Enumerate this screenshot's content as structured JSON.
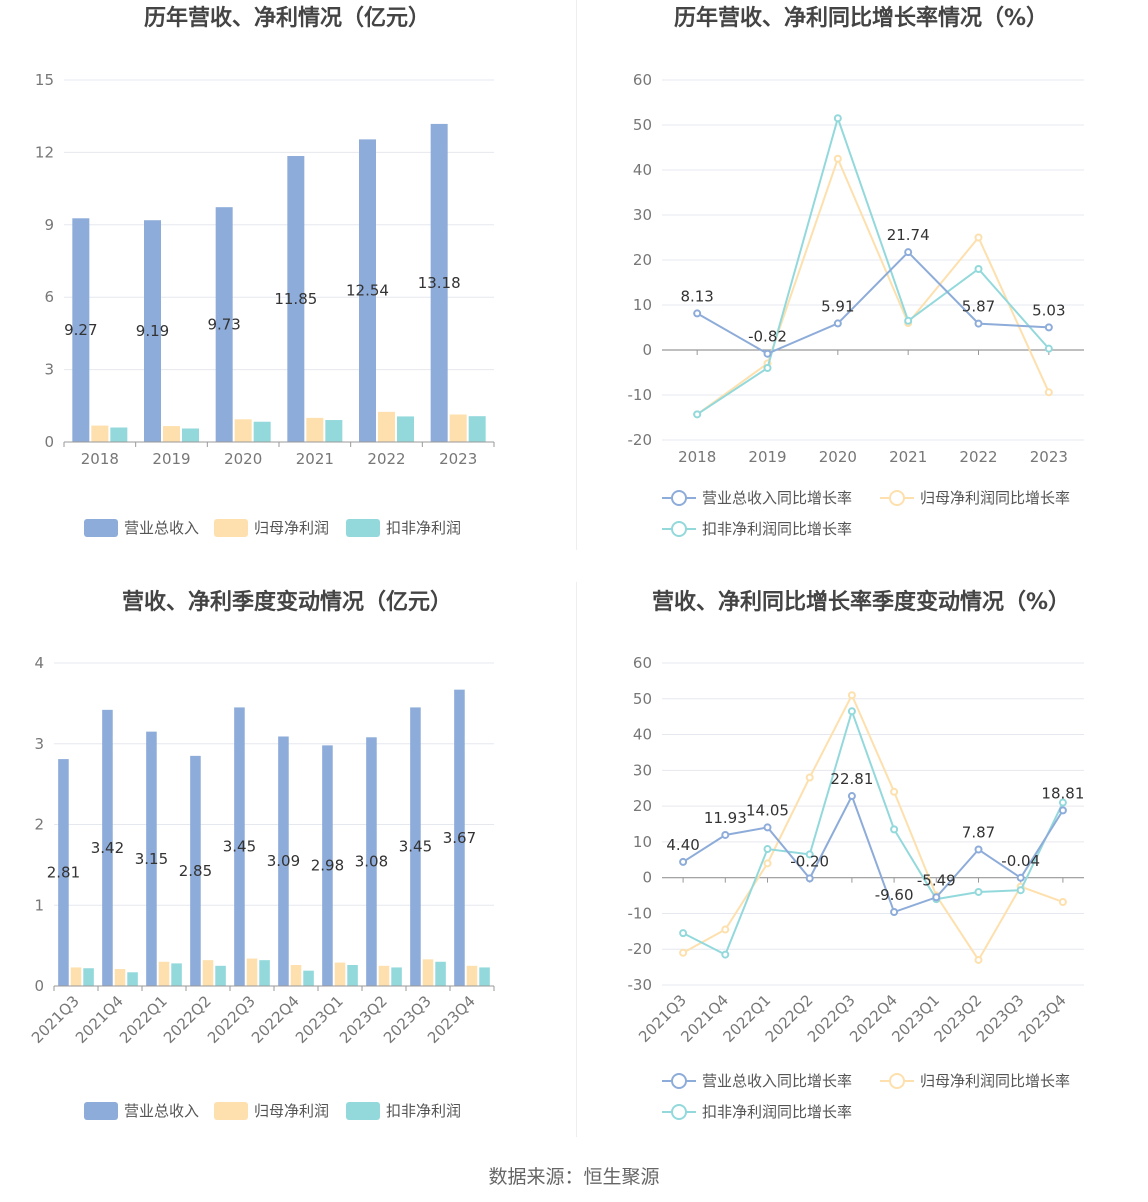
{
  "source": "数据来源：恒生聚源",
  "legend_bar": [
    "营业总收入",
    "归母净利润",
    "扣非净利润"
  ],
  "legend_line": [
    "营业总收入同比增长率",
    "归母净利润同比增长率",
    "扣非净利润同比增长率"
  ],
  "colors": {
    "blue": "#8eacd9",
    "orange": "#fde0ad",
    "cyan": "#93d9dc",
    "axis": "#999999",
    "grid": "#e6e8ef"
  },
  "chart_data": [
    {
      "type": "bar",
      "title": "历年营收、净利情况（亿元）",
      "categories": [
        "2018",
        "2019",
        "2020",
        "2021",
        "2022",
        "2023"
      ],
      "ylim": [
        0,
        15
      ],
      "yticks": [
        0,
        3,
        6,
        9,
        12,
        15
      ],
      "series": [
        {
          "name": "营业总收入",
          "values": [
            9.27,
            9.19,
            9.73,
            11.85,
            12.54,
            13.18
          ],
          "labels": [
            "9.27",
            "9.19",
            "9.73",
            "11.85",
            "12.54",
            "13.18"
          ]
        },
        {
          "name": "归母净利润",
          "values": [
            0.68,
            0.66,
            0.94,
            1.0,
            1.25,
            1.14
          ]
        },
        {
          "name": "扣非净利润",
          "values": [
            0.6,
            0.56,
            0.84,
            0.91,
            1.06,
            1.07
          ]
        }
      ]
    },
    {
      "type": "line",
      "title": "历年营收、净利同比增长率情况（%）",
      "categories": [
        "2018",
        "2019",
        "2020",
        "2021",
        "2022",
        "2023"
      ],
      "ylim": [
        -20,
        60
      ],
      "yticks": [
        -20,
        -10,
        0,
        10,
        20,
        30,
        40,
        50,
        60
      ],
      "series": [
        {
          "name": "营业总收入同比增长率",
          "values": [
            8.13,
            -0.82,
            5.91,
            21.74,
            5.87,
            5.03
          ],
          "labels": [
            "8.13",
            "-0.82",
            "5.91",
            "21.74",
            "5.87",
            "5.03"
          ]
        },
        {
          "name": "归母净利润同比增长率",
          "values": [
            -14.3,
            -3.0,
            42.5,
            6.0,
            25.0,
            -9.4
          ]
        },
        {
          "name": "扣非净利润同比增长率",
          "values": [
            -14.3,
            -4.0,
            51.5,
            6.5,
            18.0,
            0.3
          ]
        }
      ]
    },
    {
      "type": "bar",
      "title": "营收、净利季度变动情况（亿元）",
      "categories": [
        "2021Q3",
        "2021Q4",
        "2022Q1",
        "2022Q2",
        "2022Q3",
        "2022Q4",
        "2023Q1",
        "2023Q2",
        "2023Q3",
        "2023Q4"
      ],
      "ylim": [
        0,
        4
      ],
      "yticks": [
        0,
        1,
        2,
        3,
        4
      ],
      "series": [
        {
          "name": "营业总收入",
          "values": [
            2.81,
            3.42,
            3.15,
            2.85,
            3.45,
            3.09,
            2.98,
            3.08,
            3.45,
            3.67
          ],
          "labels": [
            "2.81",
            "3.42",
            "3.15",
            "2.85",
            "3.45",
            "3.09",
            "2.98",
            "3.08",
            "3.45",
            "3.67"
          ]
        },
        {
          "name": "归母净利润",
          "values": [
            0.23,
            0.21,
            0.3,
            0.32,
            0.34,
            0.26,
            0.29,
            0.25,
            0.33,
            0.25
          ]
        },
        {
          "name": "扣非净利润",
          "values": [
            0.22,
            0.17,
            0.28,
            0.25,
            0.32,
            0.19,
            0.26,
            0.23,
            0.3,
            0.23
          ]
        }
      ]
    },
    {
      "type": "line",
      "title": "营收、净利同比增长率季度变动情况（%）",
      "categories": [
        "2021Q3",
        "2021Q4",
        "2022Q1",
        "2022Q2",
        "2022Q3",
        "2022Q4",
        "2023Q1",
        "2023Q2",
        "2023Q3",
        "2023Q4"
      ],
      "ylim": [
        -30,
        60
      ],
      "yticks": [
        -30,
        -20,
        -10,
        0,
        10,
        20,
        30,
        40,
        50,
        60
      ],
      "series": [
        {
          "name": "营业总收入同比增长率",
          "values": [
            4.4,
            11.93,
            14.05,
            -0.2,
            22.81,
            -9.6,
            -5.49,
            7.87,
            -0.04,
            18.81
          ],
          "labels": [
            "4.40",
            "11.93",
            "14.05",
            "-0.20",
            "22.81",
            "-9.60",
            "-5.49",
            "7.87",
            "-0.04",
            "18.81"
          ]
        },
        {
          "name": "归母净利润同比增长率",
          "values": [
            -21.0,
            -14.5,
            4.0,
            28.0,
            51.0,
            24.0,
            -5.0,
            -23.0,
            -2.5,
            -6.8
          ]
        },
        {
          "name": "扣非净利润同比增长率",
          "values": [
            -15.5,
            -21.5,
            8.0,
            6.5,
            46.5,
            13.5,
            -6.0,
            -4.0,
            -3.5,
            21.0
          ]
        }
      ]
    }
  ]
}
